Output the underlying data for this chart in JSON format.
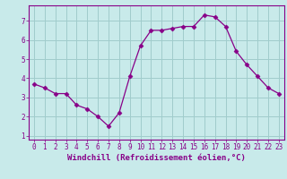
{
  "x": [
    0,
    1,
    2,
    3,
    4,
    5,
    6,
    7,
    8,
    9,
    10,
    11,
    12,
    13,
    14,
    15,
    16,
    17,
    18,
    19,
    20,
    21,
    22,
    23
  ],
  "y": [
    3.7,
    3.5,
    3.2,
    3.2,
    2.6,
    2.4,
    2.0,
    1.5,
    2.2,
    4.1,
    5.7,
    6.5,
    6.5,
    6.6,
    6.7,
    6.7,
    7.3,
    7.2,
    6.7,
    5.4,
    4.7,
    4.1,
    3.5,
    3.2
  ],
  "line_color": "#880088",
  "marker": "D",
  "marker_size": 2.5,
  "bg_color": "#c8eaea",
  "grid_color": "#a0cccc",
  "xlabel": "Windchill (Refroidissement éolien,°C)",
  "xlim": [
    -0.5,
    23.5
  ],
  "ylim": [
    0.8,
    7.8
  ],
  "xticks": [
    0,
    1,
    2,
    3,
    4,
    5,
    6,
    7,
    8,
    9,
    10,
    11,
    12,
    13,
    14,
    15,
    16,
    17,
    18,
    19,
    20,
    21,
    22,
    23
  ],
  "yticks": [
    1,
    2,
    3,
    4,
    5,
    6,
    7
  ],
  "tick_fontsize": 5.5,
  "xlabel_fontsize": 6.5,
  "tick_color": "#880088",
  "spine_color": "#880088"
}
